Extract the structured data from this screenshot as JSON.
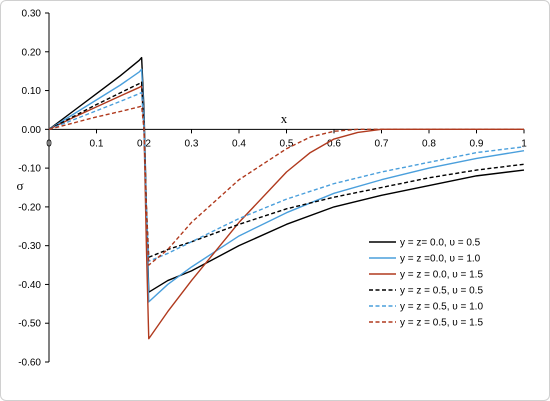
{
  "chart_data": {
    "type": "line",
    "xlabel": "x",
    "ylabel": "σ",
    "xlim": [
      0,
      1
    ],
    "ylim": [
      -0.6,
      0.3
    ],
    "x_ticks": [
      "0",
      "0.1",
      "0.2",
      "0.3",
      "0.4",
      "0.5",
      "0.6",
      "0.7",
      "0.8",
      "0.9",
      "1"
    ],
    "y_ticks": [
      "0.30",
      "0.20",
      "0.10",
      "0.00",
      "-0.10",
      "-0.20",
      "-0.30",
      "-0.40",
      "-0.50",
      "-0.60"
    ],
    "grid": false,
    "legend_position": "right",
    "series": [
      {
        "name": "y = z= 0.0,  υ = 0.5",
        "color": "#000000",
        "dash": "solid",
        "points": [
          [
            0,
            0
          ],
          [
            0.05,
            0.046
          ],
          [
            0.1,
            0.092
          ],
          [
            0.15,
            0.138
          ],
          [
            0.19,
            0.178
          ],
          [
            0.195,
            0.185
          ],
          [
            0.2,
            0.05
          ],
          [
            0.205,
            -0.2
          ],
          [
            0.21,
            -0.42
          ],
          [
            0.25,
            -0.39
          ],
          [
            0.3,
            -0.365
          ],
          [
            0.4,
            -0.3
          ],
          [
            0.5,
            -0.245
          ],
          [
            0.6,
            -0.2
          ],
          [
            0.7,
            -0.17
          ],
          [
            0.8,
            -0.145
          ],
          [
            0.9,
            -0.12
          ],
          [
            1.0,
            -0.105
          ]
        ]
      },
      {
        "name": "y = z =0.0,  υ = 1.0",
        "color": "#4a9fdc",
        "dash": "solid",
        "points": [
          [
            0,
            0
          ],
          [
            0.05,
            0.038
          ],
          [
            0.1,
            0.076
          ],
          [
            0.15,
            0.114
          ],
          [
            0.19,
            0.148
          ],
          [
            0.195,
            0.155
          ],
          [
            0.2,
            0.03
          ],
          [
            0.205,
            -0.22
          ],
          [
            0.21,
            -0.445
          ],
          [
            0.25,
            -0.4
          ],
          [
            0.3,
            -0.355
          ],
          [
            0.4,
            -0.275
          ],
          [
            0.5,
            -0.215
          ],
          [
            0.6,
            -0.165
          ],
          [
            0.7,
            -0.13
          ],
          [
            0.8,
            -0.1
          ],
          [
            0.9,
            -0.075
          ],
          [
            1.0,
            -0.055
          ]
        ]
      },
      {
        "name": "y = z = 0.0,  υ = 1.5",
        "color": "#b03a1e",
        "dash": "solid",
        "points": [
          [
            0,
            0
          ],
          [
            0.05,
            0.03
          ],
          [
            0.1,
            0.058
          ],
          [
            0.15,
            0.086
          ],
          [
            0.19,
            0.108
          ],
          [
            0.195,
            0.112
          ],
          [
            0.2,
            0.0
          ],
          [
            0.205,
            -0.3
          ],
          [
            0.21,
            -0.54
          ],
          [
            0.25,
            -0.47
          ],
          [
            0.3,
            -0.39
          ],
          [
            0.4,
            -0.24
          ],
          [
            0.5,
            -0.11
          ],
          [
            0.55,
            -0.06
          ],
          [
            0.6,
            -0.025
          ],
          [
            0.65,
            -0.008
          ],
          [
            0.7,
            0.0
          ],
          [
            0.8,
            0.0
          ],
          [
            1.0,
            0.0
          ]
        ]
      },
      {
        "name": "y = z = 0.5,  υ = 0.5",
        "color": "#000000",
        "dash": "dashed",
        "points": [
          [
            0,
            0
          ],
          [
            0.05,
            0.032
          ],
          [
            0.1,
            0.064
          ],
          [
            0.15,
            0.094
          ],
          [
            0.19,
            0.118
          ],
          [
            0.195,
            0.122
          ],
          [
            0.2,
            0.0
          ],
          [
            0.205,
            -0.2
          ],
          [
            0.21,
            -0.33
          ],
          [
            0.25,
            -0.31
          ],
          [
            0.3,
            -0.29
          ],
          [
            0.4,
            -0.245
          ],
          [
            0.5,
            -0.205
          ],
          [
            0.6,
            -0.175
          ],
          [
            0.7,
            -0.15
          ],
          [
            0.8,
            -0.125
          ],
          [
            0.9,
            -0.105
          ],
          [
            1.0,
            -0.09
          ]
        ]
      },
      {
        "name": "y = z = 0.5,  υ = 1.0",
        "color": "#4a9fdc",
        "dash": "dashed",
        "points": [
          [
            0,
            0
          ],
          [
            0.05,
            0.024
          ],
          [
            0.1,
            0.048
          ],
          [
            0.15,
            0.072
          ],
          [
            0.19,
            0.092
          ],
          [
            0.195,
            0.095
          ],
          [
            0.2,
            0.0
          ],
          [
            0.205,
            -0.21
          ],
          [
            0.21,
            -0.34
          ],
          [
            0.25,
            -0.32
          ],
          [
            0.3,
            -0.29
          ],
          [
            0.4,
            -0.23
          ],
          [
            0.5,
            -0.18
          ],
          [
            0.6,
            -0.14
          ],
          [
            0.7,
            -0.11
          ],
          [
            0.8,
            -0.085
          ],
          [
            0.9,
            -0.06
          ],
          [
            1.0,
            -0.045
          ]
        ]
      },
      {
        "name": "y = z = 0.5,  υ = 1.5",
        "color": "#b03a1e",
        "dash": "dashed",
        "points": [
          [
            0,
            0
          ],
          [
            0.05,
            0.016
          ],
          [
            0.1,
            0.032
          ],
          [
            0.15,
            0.046
          ],
          [
            0.19,
            0.058
          ],
          [
            0.195,
            0.06
          ],
          [
            0.2,
            0.0
          ],
          [
            0.205,
            -0.2
          ],
          [
            0.21,
            -0.35
          ],
          [
            0.25,
            -0.31
          ],
          [
            0.3,
            -0.24
          ],
          [
            0.4,
            -0.13
          ],
          [
            0.5,
            -0.05
          ],
          [
            0.55,
            -0.02
          ],
          [
            0.6,
            -0.005
          ],
          [
            0.65,
            0.0
          ],
          [
            0.7,
            0.0
          ],
          [
            1.0,
            0.0
          ]
        ]
      }
    ]
  }
}
